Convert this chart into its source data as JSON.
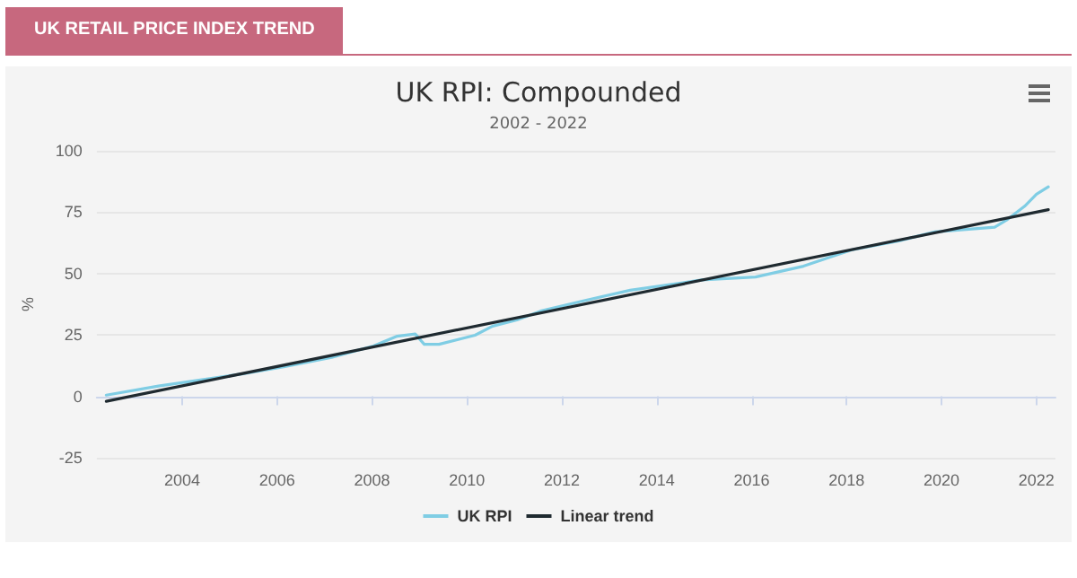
{
  "chart_data": {
    "type": "line",
    "title": "UK RPI: Compounded",
    "subtitle": "2002 - 2022",
    "ylabel": "%",
    "annotations": [
      "UK RETAIL PRICE INDEX TREND"
    ],
    "xlim": [
      2002.2,
      2022.4
    ],
    "xticks": [
      2004,
      2006,
      2008,
      2010,
      2012,
      2014,
      2016,
      2018,
      2020,
      2022
    ],
    "ylim": [
      -25,
      100
    ],
    "yticks": [
      -25,
      0,
      25,
      50,
      75,
      100
    ],
    "grid": "y",
    "legend": "bottom",
    "marker": "none",
    "line_style": "solid",
    "series": [
      {
        "name": "UK RPI",
        "color": "#7fcde4",
        "x": [
          2002.4,
          2003.5,
          2005.26,
          2006.14,
          2007.15,
          2008.03,
          2008.53,
          2008.91,
          2009.1,
          2009.41,
          2010.17,
          2010.54,
          2011.05,
          2011.55,
          2012.43,
          2013.44,
          2014.95,
          2016.08,
          2017.09,
          2018.1,
          2019.1,
          2019.86,
          2021.12,
          2021.37,
          2021.75,
          2022.0,
          2022.25
        ],
        "values": [
          0.5,
          4.2,
          9.1,
          12,
          15.9,
          20.5,
          24.5,
          25.4,
          21.2,
          21.2,
          24.9,
          28.6,
          31.1,
          34.7,
          38.8,
          43.2,
          47.4,
          48.6,
          53,
          59.6,
          63.3,
          67,
          68.9,
          71.8,
          77.4,
          82.3,
          85.3
        ]
      },
      {
        "name": "Linear trend",
        "color": "#1f2a30",
        "x": [
          2002.4,
          2022.25
        ],
        "values": [
          -2,
          76
        ]
      }
    ]
  }
}
